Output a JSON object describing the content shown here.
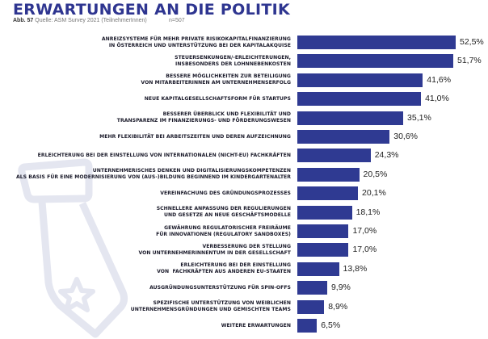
{
  "header": {
    "title": "ERWARTUNGEN AN DIE POLITIK",
    "figure": "Abb. 57",
    "source": "Quelle: ASM Survey 2021 (TeilnehmerInnen)",
    "n": "n=507"
  },
  "colors": {
    "bar": "#2f3a92",
    "title": "#2e3590",
    "decoration": "#e4e6f0"
  },
  "decoration": {
    "icon": "tie-with-star-icon"
  },
  "chart_data": {
    "type": "bar",
    "orientation": "horizontal",
    "title": "ERWARTUNGEN AN DIE POLITIK",
    "subtitle": "Abb. 57 Quelle: ASM Survey 2021 (TeilnehmerInnen) n=507",
    "xlabel": "",
    "ylabel": "",
    "unit": "%",
    "xlim": [
      0,
      52.5
    ],
    "grid": false,
    "legend": "none",
    "categories": [
      "ANREIZSYSTEME FÜR MEHR PRIVATE RISIKOKAPITALFINANZIERUNG\nIN ÖSTERREICH UND UNTERSTÜTZUNG BEI DER KAPITALAKQUISE",
      "STEUERSENKUNGEN/-ERLEICHTERUNGEN,\nINSBESONDERS DER LOHNNEBENKOSTEN",
      "BESSERE MÖGLICHKEITEN ZUR BETEILIGUNG\nVON MITARBEITERINNEN AM UNTERNEHMENSERFOLG",
      "NEUE KAPITALGESELLSCHAFTSFORM FÜR STARTUPS",
      "BESSERER ÜBERBLICK UND FLEXIBILITÄT UND\nTRANSPARENZ IM FINANZIERUNGS- UND FÖRDERUNGSWESEN",
      "MEHR FLEXIBILITÄT BEI ARBEITSZEITEN UND DEREN AUFZEICHNUNG",
      "ERLEICHTERUNG BEI DER EINSTELLUNG VON INTERNATIONALEN (NICHT-EU) FACHKRÄFTEN",
      "UNTERNEHMERISCHES DENKEN UND DIGITALISIERUNGSKOMPETENZEN\nALS BASIS FÜR EINE MODERNISIERUNG VON (AUS-)BILDUNG BEGINNEND IM KINDERGARTENALTER",
      "VEREINFACHUNG DES GRÜNDUNGSPROZESSES",
      "SCHNELLERE ANPASSUNG DER REGULIERUNGEN\nUND GESETZE AN NEUE GESCHÄFTSMODELLE",
      "GEWÄHRUNG REGULATORISCHER FREIRÄUME\nFÜR INNOVATIONEN (REGULATORY SANDBOXES)",
      "VERBESSERUNG DER STELLUNG\nVON UNTERNEHMERINNENTUM IN DER GESELLSCHAFT",
      "ERLEICHTERUNG BEI DER EINSTELLUNG\nVON  FACHKRÄFTEN AUS ANDEREN EU-STAATEN",
      "AUSGRÜNDUNGSUNTERSTÜTZUNG FÜR SPIN-OFFS",
      "SPEZIFISCHE UNTERSTÜTZUNG VON WEIBLICHEN\nUNTERNEHMENSGRÜNDUNGEN UND GEMISCHTEN TEAMS",
      "WEITERE ERWARTUNGEN"
    ],
    "values": [
      52.5,
      51.7,
      41.6,
      41.0,
      35.1,
      30.6,
      24.3,
      20.5,
      20.1,
      18.1,
      17.0,
      17.0,
      13.8,
      9.9,
      8.9,
      6.5
    ],
    "value_labels": [
      "52,5%",
      "51,7%",
      "41,6%",
      "41,0%",
      "35,1%",
      "30,6%",
      "24,3%",
      "20,5%",
      "20,1%",
      "18,1%",
      "17,0%",
      "17,0%",
      "13,8%",
      "9,9%",
      "8,9%",
      "6,5%"
    ]
  }
}
